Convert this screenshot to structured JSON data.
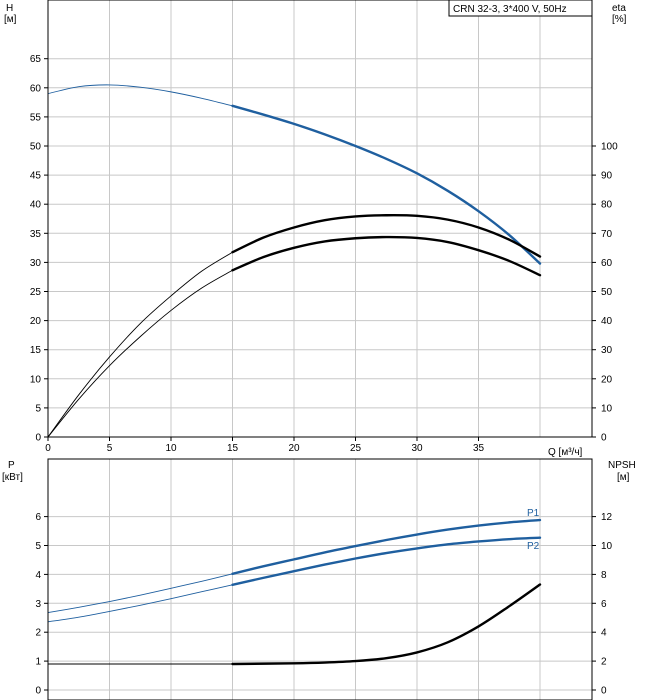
{
  "chart_data": [
    {
      "type": "line",
      "title": "CRN 32-3, 3*400 V, 50Hz",
      "xlabel": "Q [м³/ч]",
      "x_ticks": [
        "0",
        "5",
        "10",
        "15",
        "20",
        "25",
        "30",
        "35"
      ],
      "xlim": [
        0,
        42
      ],
      "y_left": {
        "label_line1": "H",
        "label_line2": "[м]",
        "range": [
          0,
          65
        ],
        "ticks": [
          "0",
          "5",
          "10",
          "15",
          "20",
          "25",
          "30",
          "35",
          "40",
          "45",
          "50",
          "55",
          "60",
          "65"
        ]
      },
      "y_right": {
        "label_line1": "eta",
        "label_line2": "[%]",
        "range": [
          0,
          100
        ],
        "ticks": [
          "0",
          "10",
          "20",
          "30",
          "40",
          "50",
          "60",
          "70",
          "80",
          "90",
          "100"
        ]
      },
      "grid": true,
      "series": [
        {
          "axis": "left",
          "color": "#1f5f9f",
          "operating_from": 15,
          "x": [
            0,
            2.5,
            5,
            7.5,
            10,
            12.5,
            15,
            17.5,
            20,
            22.5,
            25,
            27.5,
            30,
            32.5,
            35,
            37.5,
            40
          ],
          "values": [
            59.0,
            60.2,
            60.5,
            60.1,
            59.3,
            58.2,
            56.9,
            55.4,
            53.8,
            52.0,
            50.0,
            47.8,
            45.3,
            42.3,
            38.8,
            34.7,
            29.8
          ]
        },
        {
          "axis": "right",
          "color": "#000000",
          "operating_from": 15,
          "x": [
            0,
            2.5,
            5,
            7.5,
            10,
            12.5,
            15,
            17.5,
            20,
            22.5,
            25,
            27.5,
            30,
            32.5,
            35,
            37.5,
            40
          ],
          "values": [
            0,
            14.5,
            27.5,
            39.0,
            48.5,
            57.0,
            63.5,
            68.5,
            72.0,
            74.5,
            75.8,
            76.2,
            76.0,
            74.7,
            72.0,
            67.8,
            62.0
          ]
        },
        {
          "axis": "right",
          "color": "#000000",
          "operating_from": 15,
          "x": [
            0,
            2.5,
            5,
            7.5,
            10,
            12.5,
            15,
            17.5,
            20,
            22.5,
            25,
            27.5,
            30,
            32.5,
            35,
            37.5,
            40
          ],
          "values": [
            0,
            13.0,
            24.5,
            34.5,
            43.5,
            51.2,
            57.3,
            61.8,
            65.0,
            67.2,
            68.3,
            68.7,
            68.4,
            67.0,
            64.2,
            60.5,
            55.6
          ]
        }
      ]
    },
    {
      "type": "line",
      "xlim": [
        0,
        42
      ],
      "y_left": {
        "label_line1": "P",
        "label_line2": "[кВт]",
        "range": [
          0,
          7
        ],
        "ticks": [
          "0",
          "1",
          "2",
          "3",
          "4",
          "5",
          "6"
        ]
      },
      "y_right": {
        "label_line1": "NPSH",
        "label_line2": "[м]",
        "range": [
          0,
          14
        ],
        "ticks": [
          "0",
          "2",
          "4",
          "6",
          "8",
          "10",
          "12"
        ]
      },
      "grid": true,
      "series": [
        {
          "name": "P1",
          "axis": "left",
          "color": "#1f5f9f",
          "operating_from": 15,
          "x": [
            0,
            2.5,
            5,
            7.5,
            10,
            12.5,
            15,
            17.5,
            20,
            22.5,
            25,
            27.5,
            30,
            32.5,
            35,
            37.5,
            40
          ],
          "values": [
            2.68,
            2.86,
            3.06,
            3.28,
            3.52,
            3.76,
            4.02,
            4.28,
            4.52,
            4.76,
            4.98,
            5.19,
            5.38,
            5.55,
            5.69,
            5.8,
            5.88
          ]
        },
        {
          "name": "P2",
          "axis": "left",
          "color": "#1f5f9f",
          "operating_from": 15,
          "x": [
            0,
            2.5,
            5,
            7.5,
            10,
            12.5,
            15,
            17.5,
            20,
            22.5,
            25,
            27.5,
            30,
            32.5,
            35,
            37.5,
            40
          ],
          "values": [
            2.36,
            2.52,
            2.72,
            2.93,
            3.16,
            3.4,
            3.64,
            3.88,
            4.11,
            4.34,
            4.55,
            4.74,
            4.9,
            5.04,
            5.14,
            5.22,
            5.27
          ]
        },
        {
          "axis": "right",
          "color": "#000000",
          "operating_from": 15,
          "x": [
            0,
            5,
            10,
            15,
            20,
            22.5,
            25,
            27.5,
            30,
            32.5,
            35,
            37.5,
            40
          ],
          "values": [
            1.8,
            1.8,
            1.8,
            1.8,
            1.85,
            1.9,
            2.0,
            2.2,
            2.6,
            3.3,
            4.4,
            5.8,
            7.3
          ]
        }
      ]
    }
  ]
}
